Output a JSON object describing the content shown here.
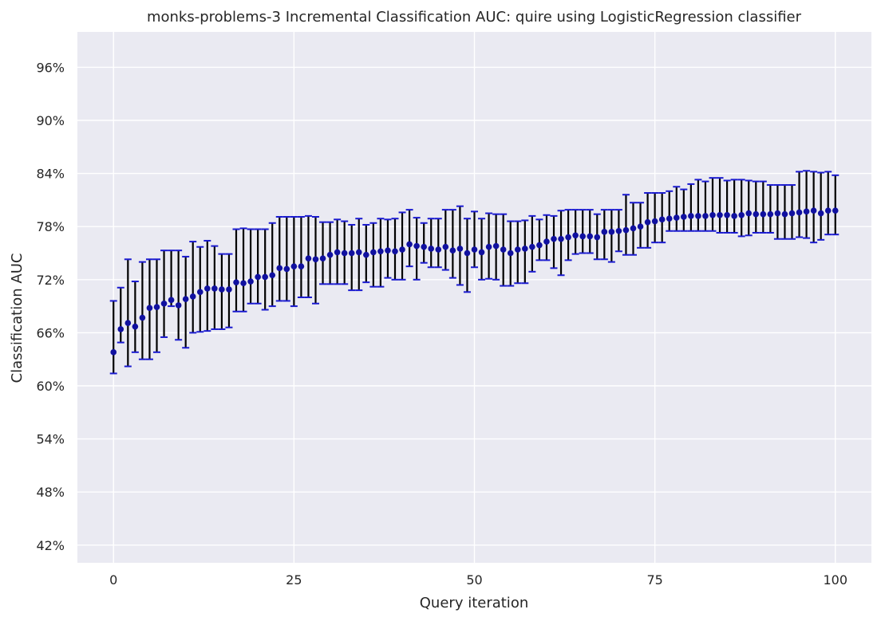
{
  "chart_data": {
    "type": "scatter",
    "title": "monks-problems-3 Incremental Classification AUC: quire using LogisticRegression classifier",
    "xlabel": "Query iteration",
    "ylabel": "Classification AUC",
    "xlim": [
      -5,
      105
    ],
    "ylim": [
      0.4,
      1.0
    ],
    "xticks": [
      0,
      25,
      50,
      75,
      100
    ],
    "xtick_labels": [
      "0",
      "25",
      "50",
      "75",
      "100"
    ],
    "yticks": [
      0.42,
      0.48,
      0.54,
      0.6,
      0.66,
      0.72,
      0.78,
      0.84,
      0.9,
      0.96
    ],
    "ytick_labels": [
      "42%",
      "48%",
      "54%",
      "60%",
      "66%",
      "72%",
      "78%",
      "84%",
      "90%",
      "96%"
    ],
    "grid": true,
    "colors": {
      "background": "#eaeaf2",
      "marker": "#1010a0",
      "errorbar": "#000000",
      "cap": "#1a1ad0",
      "grid": "#ffffff"
    },
    "series": [
      {
        "x": [
          0,
          1,
          2,
          3,
          4,
          5,
          6,
          7,
          8,
          9,
          10,
          11,
          12,
          13,
          14,
          15,
          16,
          17,
          18,
          19,
          20,
          21,
          22,
          23,
          24,
          25,
          26,
          27,
          28,
          29,
          30,
          31,
          32,
          33,
          34,
          35,
          36,
          37,
          38,
          39,
          40,
          41,
          42,
          43,
          44,
          45,
          46,
          47,
          48,
          49,
          50,
          51,
          52,
          53,
          54,
          55,
          56,
          57,
          58,
          59,
          60,
          61,
          62,
          63,
          64,
          65,
          66,
          67,
          68,
          69,
          70,
          71,
          72,
          73,
          74,
          75,
          76,
          77,
          78,
          79,
          80,
          81,
          82,
          83,
          84,
          85,
          86,
          87,
          88,
          89,
          90,
          91,
          92,
          93,
          94,
          95,
          96,
          97,
          98,
          99,
          100
        ],
        "y": [
          0.638,
          0.664,
          0.671,
          0.667,
          0.677,
          0.688,
          0.689,
          0.693,
          0.697,
          0.691,
          0.698,
          0.701,
          0.706,
          0.71,
          0.71,
          0.709,
          0.709,
          0.717,
          0.716,
          0.718,
          0.723,
          0.723,
          0.725,
          0.733,
          0.732,
          0.735,
          0.735,
          0.744,
          0.743,
          0.744,
          0.748,
          0.751,
          0.75,
          0.75,
          0.751,
          0.748,
          0.751,
          0.752,
          0.753,
          0.752,
          0.754,
          0.76,
          0.758,
          0.757,
          0.755,
          0.754,
          0.757,
          0.753,
          0.755,
          0.75,
          0.754,
          0.751,
          0.757,
          0.758,
          0.754,
          0.75,
          0.754,
          0.755,
          0.757,
          0.759,
          0.763,
          0.766,
          0.766,
          0.768,
          0.77,
          0.769,
          0.769,
          0.768,
          0.774,
          0.774,
          0.775,
          0.776,
          0.778,
          0.78,
          0.785,
          0.786,
          0.788,
          0.789,
          0.79,
          0.791,
          0.792,
          0.792,
          0.792,
          0.793,
          0.793,
          0.793,
          0.792,
          0.793,
          0.795,
          0.794,
          0.794,
          0.794,
          0.795,
          0.794,
          0.795,
          0.796,
          0.797,
          0.798,
          0.795,
          0.798,
          0.798
        ],
        "yerr_low": [
          0.614,
          0.649,
          0.622,
          0.638,
          0.63,
          0.63,
          0.638,
          0.655,
          0.69,
          0.652,
          0.643,
          0.66,
          0.661,
          0.662,
          0.664,
          0.664,
          0.666,
          0.684,
          0.684,
          0.693,
          0.693,
          0.686,
          0.69,
          0.696,
          0.696,
          0.69,
          0.7,
          0.7,
          0.693,
          0.715,
          0.715,
          0.715,
          0.715,
          0.708,
          0.708,
          0.717,
          0.712,
          0.712,
          0.722,
          0.72,
          0.72,
          0.735,
          0.72,
          0.739,
          0.734,
          0.734,
          0.731,
          0.722,
          0.714,
          0.706,
          0.734,
          0.72,
          0.721,
          0.72,
          0.713,
          0.713,
          0.716,
          0.716,
          0.729,
          0.742,
          0.742,
          0.733,
          0.725,
          0.742,
          0.749,
          0.75,
          0.75,
          0.743,
          0.743,
          0.74,
          0.752,
          0.748,
          0.748,
          0.756,
          0.756,
          0.762,
          0.762,
          0.775,
          0.775,
          0.775,
          0.775,
          0.775,
          0.775,
          0.775,
          0.773,
          0.773,
          0.773,
          0.769,
          0.77,
          0.773,
          0.773,
          0.773,
          0.766,
          0.766,
          0.766,
          0.768,
          0.767,
          0.762,
          0.765,
          0.771,
          0.771
        ],
        "yerr_high": [
          0.696,
          0.711,
          0.743,
          0.718,
          0.74,
          0.743,
          0.743,
          0.753,
          0.753,
          0.753,
          0.746,
          0.763,
          0.757,
          0.764,
          0.758,
          0.749,
          0.749,
          0.777,
          0.778,
          0.777,
          0.777,
          0.777,
          0.784,
          0.791,
          0.791,
          0.791,
          0.791,
          0.792,
          0.791,
          0.785,
          0.785,
          0.788,
          0.786,
          0.782,
          0.789,
          0.782,
          0.784,
          0.789,
          0.788,
          0.789,
          0.796,
          0.799,
          0.79,
          0.784,
          0.789,
          0.789,
          0.799,
          0.799,
          0.803,
          0.789,
          0.797,
          0.789,
          0.795,
          0.794,
          0.794,
          0.786,
          0.786,
          0.787,
          0.792,
          0.788,
          0.793,
          0.792,
          0.798,
          0.799,
          0.799,
          0.799,
          0.799,
          0.794,
          0.799,
          0.799,
          0.799,
          0.816,
          0.807,
          0.807,
          0.818,
          0.818,
          0.818,
          0.82,
          0.825,
          0.822,
          0.828,
          0.833,
          0.831,
          0.835,
          0.835,
          0.832,
          0.833,
          0.833,
          0.832,
          0.831,
          0.831,
          0.827,
          0.827,
          0.827,
          0.827,
          0.842,
          0.843,
          0.842,
          0.841,
          0.842,
          0.838
        ]
      }
    ]
  }
}
